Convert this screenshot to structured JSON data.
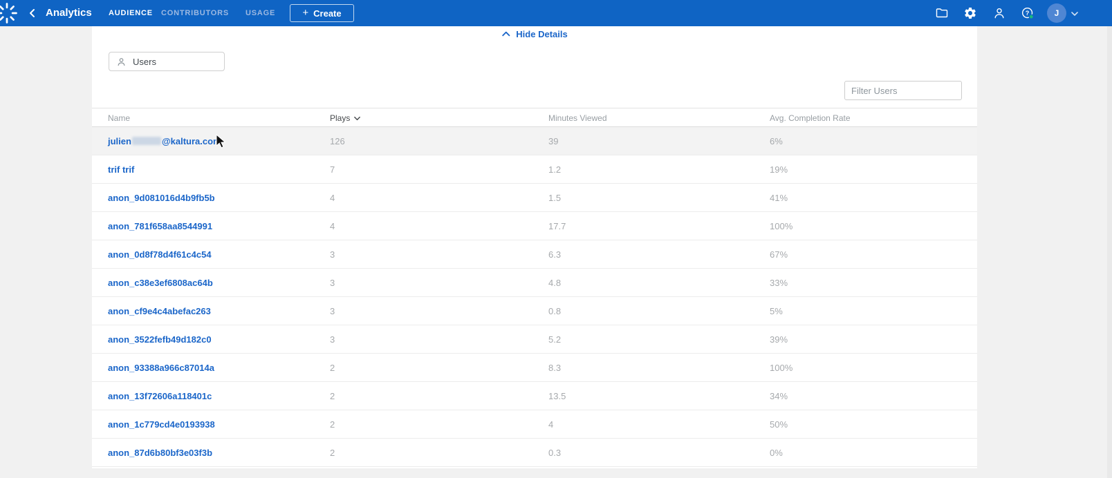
{
  "header": {
    "app_title": "Analytics",
    "tabs": [
      {
        "label": "AUDIENCE",
        "active": true
      },
      {
        "label": "CONTRIBUTORS",
        "active": false
      },
      {
        "label": "USAGE",
        "active": false
      }
    ],
    "create_button": {
      "plus": "+",
      "label": "Create"
    },
    "avatar_initial": "J"
  },
  "toolbar": {
    "hide_details_label": "Hide Details",
    "dimension_select": {
      "value": "Users"
    },
    "filter_input": {
      "placeholder": "Filter Users",
      "value": ""
    }
  },
  "table": {
    "columns": [
      {
        "label": "Name"
      },
      {
        "label": "Plays",
        "sorted": "desc"
      },
      {
        "label": "Minutes Viewed"
      },
      {
        "label": "Avg. Completion Rate"
      }
    ],
    "rows": [
      {
        "name": "julien",
        "redacted": true,
        "name_suffix": "@kaltura.com",
        "plays": "126",
        "minutes_viewed": "39",
        "avg_completion_rate": "6%",
        "highlighted": true
      },
      {
        "name": "trif trif",
        "plays": "7",
        "minutes_viewed": "1.2",
        "avg_completion_rate": "19%"
      },
      {
        "name": "anon_9d081016d4b9fb5b",
        "plays": "4",
        "minutes_viewed": "1.5",
        "avg_completion_rate": "41%"
      },
      {
        "name": "anon_781f658aa8544991",
        "plays": "4",
        "minutes_viewed": "17.7",
        "avg_completion_rate": "100%"
      },
      {
        "name": "anon_0d8f78d4f61c4c54",
        "plays": "3",
        "minutes_viewed": "6.3",
        "avg_completion_rate": "67%"
      },
      {
        "name": "anon_c38e3ef6808ac64b",
        "plays": "3",
        "minutes_viewed": "4.8",
        "avg_completion_rate": "33%"
      },
      {
        "name": "anon_cf9e4c4abefac263",
        "plays": "3",
        "minutes_viewed": "0.8",
        "avg_completion_rate": "5%"
      },
      {
        "name": "anon_3522fefb49d182c0",
        "plays": "3",
        "minutes_viewed": "5.2",
        "avg_completion_rate": "39%"
      },
      {
        "name": "anon_93388a966c87014a",
        "plays": "2",
        "minutes_viewed": "8.3",
        "avg_completion_rate": "100%"
      },
      {
        "name": "anon_13f72606a118401c",
        "plays": "2",
        "minutes_viewed": "13.5",
        "avg_completion_rate": "34%"
      },
      {
        "name": "anon_1c779cd4e0193938",
        "plays": "2",
        "minutes_viewed": "4",
        "avg_completion_rate": "50%"
      },
      {
        "name": "anon_87d6b80bf3e03f3b",
        "plays": "2",
        "minutes_viewed": "0.3",
        "avg_completion_rate": "0%"
      }
    ]
  },
  "colors": {
    "header_bar": "#0f64c4",
    "link_blue": "#1b66c9",
    "muted_text": "#a6a9ac",
    "page_bg": "#f1f1f1",
    "help_status_dot": "#1ab97d"
  }
}
